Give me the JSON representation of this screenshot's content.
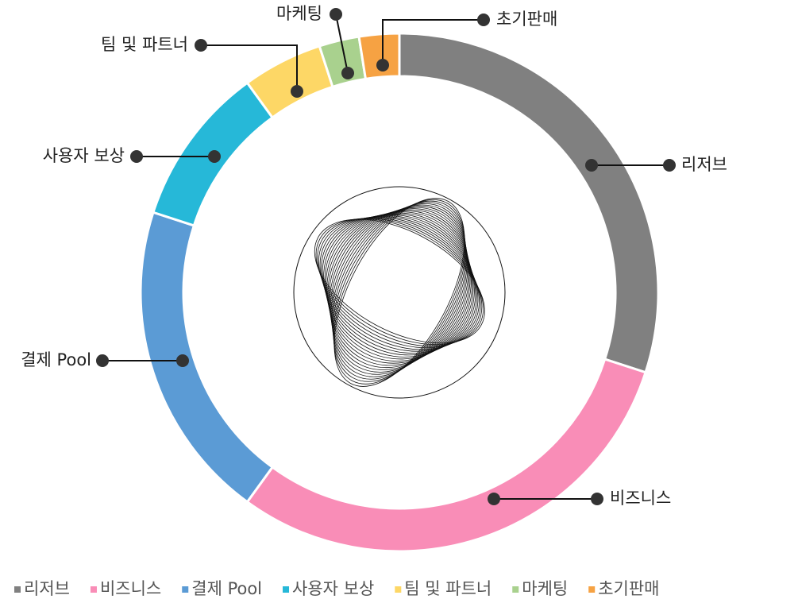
{
  "chart_data": {
    "type": "donut",
    "categories": [
      "리저브",
      "비즈니스",
      "결제 Pool",
      "사용자 보상",
      "팀 및 파트너",
      "마케팅",
      "초기판매"
    ],
    "values": [
      30,
      30,
      20,
      10,
      5,
      2.5,
      2.5
    ],
    "colors": [
      "#808080",
      "#f98db7",
      "#5b9bd5",
      "#26b8d8",
      "#fdd766",
      "#a9d18e",
      "#f6a243"
    ],
    "legend": "bottom"
  }
}
